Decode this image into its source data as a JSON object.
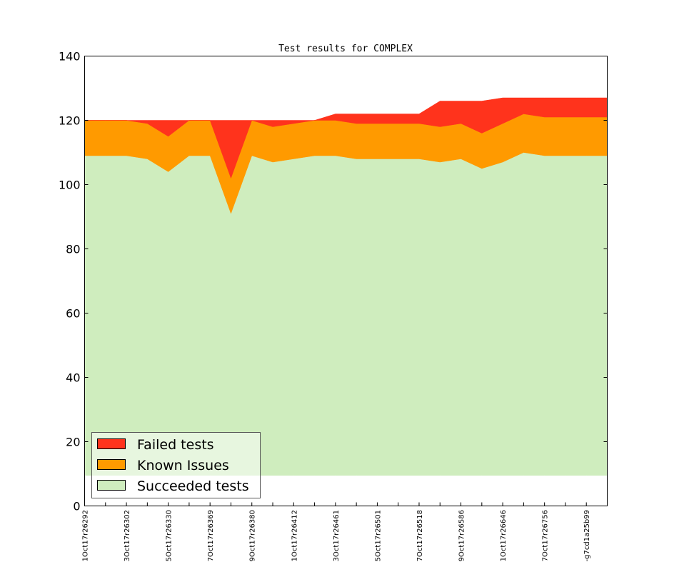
{
  "chart_data": {
    "type": "area",
    "stacked": true,
    "title": "Test results for COMPLEX",
    "xlabel": "",
    "ylabel": "",
    "ylim": [
      0,
      140
    ],
    "yticks": [
      0,
      20,
      40,
      60,
      80,
      100,
      120,
      140
    ],
    "fill_baseline": 9.5,
    "x_tick_labels": [
      "1Oct17r26292",
      "3Oct17r26302",
      "5Oct17r26330",
      "7Oct17r26369",
      "9Oct17r26380",
      "1Oct17r26412",
      "3Oct17r26461",
      "5Oct17r26501",
      "7Oct17r26518",
      "9Oct17r26586",
      "1Oct17r26646",
      "7Oct17r26756",
      "-g7cd1a25b99"
    ],
    "x_tick_label_every": 2,
    "n_points": 26,
    "series": [
      {
        "name": "Succeeded tests",
        "color": "#cfedbe",
        "values": [
          109,
          109,
          109,
          108,
          104,
          109,
          109,
          91,
          109,
          107,
          108,
          109,
          109,
          108,
          108,
          108,
          108,
          107,
          108,
          105,
          107,
          110,
          109,
          109,
          109,
          109
        ]
      },
      {
        "name": "Known Issues",
        "color": "#ff9a00",
        "values": [
          11,
          11,
          11,
          11,
          11,
          11,
          11,
          11,
          11,
          11,
          11,
          11,
          11,
          11,
          11,
          11,
          11,
          11,
          11,
          11,
          12,
          12,
          12,
          12,
          12,
          12
        ]
      },
      {
        "name": "Failed tests",
        "color": "#ff331c",
        "values": [
          0,
          0,
          0,
          1,
          5,
          0,
          0,
          18,
          0,
          2,
          1,
          0,
          2,
          3,
          3,
          3,
          3,
          8,
          7,
          10,
          8,
          5,
          6,
          6,
          6,
          6
        ]
      }
    ],
    "legend": {
      "position": "bottom-left",
      "entries": [
        "Failed tests",
        "Known Issues",
        "Succeeded tests"
      ]
    },
    "grid": false
  }
}
